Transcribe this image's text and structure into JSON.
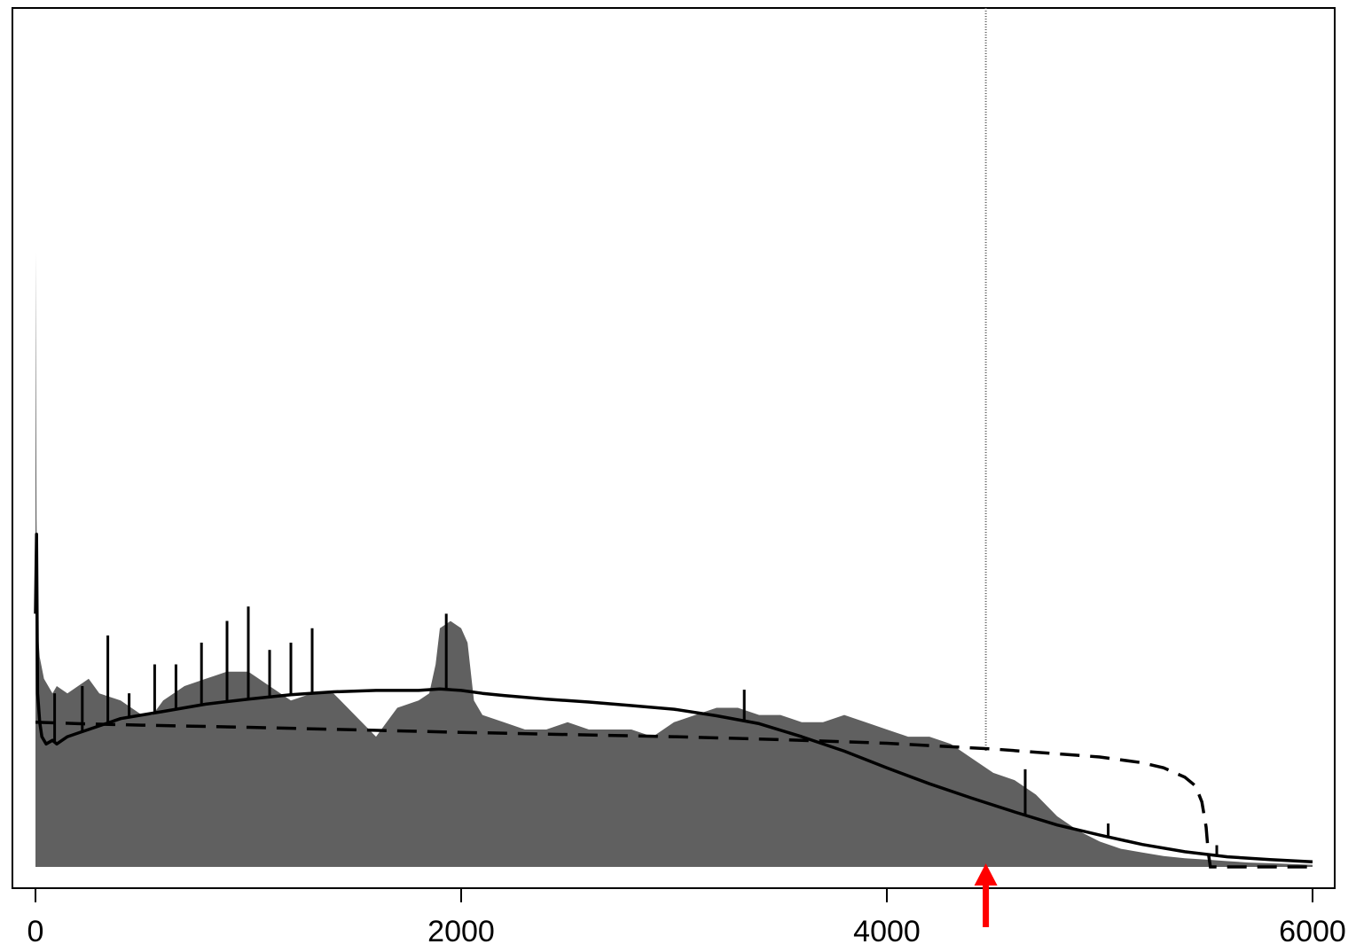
{
  "chart_data": {
    "type": "area",
    "title": "",
    "xlabel": "",
    "ylabel": "",
    "xlim": [
      -100,
      6100
    ],
    "ylim": [
      0,
      1
    ],
    "x_ticks": [
      0,
      2000,
      4000,
      6000
    ],
    "x_tick_labels": [
      "0",
      "2000",
      "4000",
      "6000"
    ],
    "y_axis_visible": false,
    "grid": false,
    "legend": "none",
    "colors": {
      "area": "#606060",
      "solid_line": "#000000",
      "dashed_line": "#000000",
      "vline": "#666666",
      "arrow": "#ff0000"
    },
    "series": [
      {
        "style": "filled-area",
        "x": [
          0,
          5,
          10,
          20,
          40,
          60,
          80,
          100,
          150,
          200,
          250,
          300,
          400,
          500,
          550,
          600,
          700,
          800,
          900,
          1000,
          1100,
          1200,
          1300,
          1400,
          1500,
          1600,
          1650,
          1700,
          1800,
          1850,
          1880,
          1900,
          1950,
          2000,
          2030,
          2060,
          2100,
          2200,
          2300,
          2400,
          2500,
          2600,
          2700,
          2800,
          2900,
          3000,
          3100,
          3200,
          3300,
          3400,
          3500,
          3600,
          3700,
          3800,
          3900,
          4000,
          4100,
          4200,
          4300,
          4400,
          4500,
          4600,
          4700,
          4800,
          4900,
          5000,
          5100,
          5200,
          5300,
          5400,
          5500,
          5600,
          5700,
          5800,
          5900,
          6000
        ],
        "y": [
          0.85,
          0.48,
          0.33,
          0.29,
          0.26,
          0.25,
          0.24,
          0.25,
          0.24,
          0.25,
          0.26,
          0.24,
          0.23,
          0.21,
          0.21,
          0.23,
          0.25,
          0.26,
          0.27,
          0.27,
          0.25,
          0.23,
          0.24,
          0.24,
          0.21,
          0.18,
          0.2,
          0.22,
          0.23,
          0.24,
          0.28,
          0.33,
          0.34,
          0.33,
          0.31,
          0.23,
          0.21,
          0.2,
          0.19,
          0.19,
          0.2,
          0.19,
          0.19,
          0.19,
          0.18,
          0.2,
          0.21,
          0.22,
          0.22,
          0.21,
          0.21,
          0.2,
          0.2,
          0.21,
          0.2,
          0.19,
          0.18,
          0.18,
          0.17,
          0.15,
          0.13,
          0.12,
          0.1,
          0.07,
          0.05,
          0.035,
          0.025,
          0.02,
          0.015,
          0.012,
          0.01,
          0.008,
          0.006,
          0.005,
          0.004,
          0.003
        ]
      },
      {
        "style": "solid-line",
        "x": [
          0,
          5,
          10,
          20,
          30,
          50,
          80,
          100,
          150,
          200,
          300,
          400,
          500,
          600,
          800,
          1000,
          1200,
          1400,
          1600,
          1800,
          1900,
          2000,
          2100,
          2200,
          2400,
          2600,
          2800,
          3000,
          3200,
          3400,
          3600,
          3800,
          4000,
          4200,
          4400,
          4600,
          4800,
          5000,
          5200,
          5400,
          5600,
          5800,
          6000
        ],
        "y": [
          0.35,
          0.46,
          0.24,
          0.2,
          0.18,
          0.17,
          0.175,
          0.17,
          0.18,
          0.185,
          0.195,
          0.205,
          0.21,
          0.215,
          0.225,
          0.232,
          0.238,
          0.242,
          0.244,
          0.244,
          0.246,
          0.244,
          0.24,
          0.237,
          0.232,
          0.228,
          0.223,
          0.218,
          0.209,
          0.198,
          0.18,
          0.16,
          0.137,
          0.115,
          0.095,
          0.076,
          0.058,
          0.044,
          0.031,
          0.021,
          0.014,
          0.01,
          0.007
        ]
      },
      {
        "style": "dashed-line",
        "x": [
          0,
          200,
          500,
          1000,
          2000,
          3000,
          3500,
          4000,
          4500,
          5000,
          5200,
          5300,
          5400,
          5450,
          5480,
          5500,
          5510,
          5520,
          5600,
          6000
        ],
        "y": [
          0.2,
          0.198,
          0.196,
          0.193,
          0.186,
          0.18,
          0.176,
          0.171,
          0.163,
          0.152,
          0.144,
          0.137,
          0.124,
          0.112,
          0.09,
          0.055,
          0.02,
          0.0,
          0.0,
          0.0
        ]
      }
    ],
    "spikes": {
      "x": [
        90,
        220,
        340,
        440,
        560,
        660,
        780,
        900,
        1000,
        1100,
        1200,
        1300,
        1930,
        3330,
        4650,
        5040,
        5550
      ],
      "y": [
        0.24,
        0.25,
        0.32,
        0.24,
        0.28,
        0.28,
        0.31,
        0.34,
        0.36,
        0.3,
        0.31,
        0.33,
        0.35,
        0.245,
        0.135,
        0.06,
        0.03
      ]
    },
    "vline_x": 4465,
    "arrow_x": 4465
  }
}
